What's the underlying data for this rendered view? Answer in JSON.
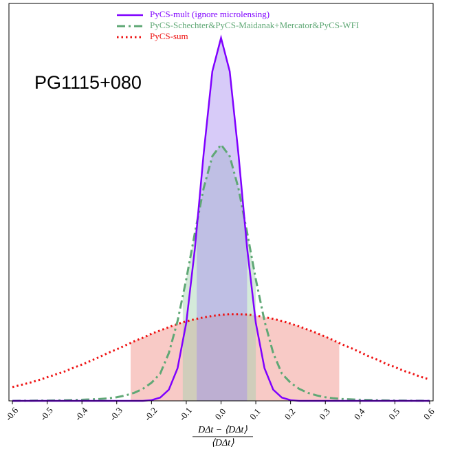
{
  "chart_data": {
    "type": "line",
    "annotation": "PG1115+080",
    "xlabel": {
      "numerator": "DΔt − ⟨DΔt⟩",
      "denominator": "⟨DΔt⟩"
    },
    "xlim": [
      -0.61,
      0.61
    ],
    "ylim": [
      0,
      1.095
    ],
    "xticks": [
      -0.6,
      -0.5,
      -0.4,
      -0.3,
      -0.2,
      -0.1,
      {
        "value": 0,
        "label": "0.0"
      },
      0.1,
      0.2,
      0.3,
      0.4,
      0.5,
      0.6
    ],
    "x": [
      -0.6,
      -0.575,
      -0.55,
      -0.525,
      -0.5,
      -0.475,
      -0.45,
      -0.425,
      -0.4,
      -0.375,
      -0.35,
      -0.325,
      -0.3,
      -0.275,
      -0.25,
      -0.225,
      -0.2,
      -0.175,
      -0.15,
      -0.125,
      -0.1,
      -0.075,
      -0.05,
      -0.025,
      0,
      0.025,
      0.05,
      0.075,
      0.1,
      0.125,
      0.15,
      0.175,
      0.2,
      0.225,
      0.25,
      0.275,
      0.3,
      0.325,
      0.35,
      0.375,
      0.4,
      0.425,
      0.45,
      0.475,
      0.5,
      0.525,
      0.55,
      0.575,
      0.6
    ],
    "series": [
      {
        "name": "PyCS-sum",
        "color": "#ee1111",
        "fill": "#f08a80",
        "style": "dotted",
        "band": [
          -0.26,
          0.34
        ],
        "values": [
          0.038,
          0.044,
          0.05,
          0.057,
          0.065,
          0.073,
          0.081,
          0.091,
          0.1,
          0.11,
          0.121,
          0.132,
          0.142,
          0.153,
          0.164,
          0.174,
          0.185,
          0.194,
          0.203,
          0.212,
          0.219,
          0.225,
          0.23,
          0.234,
          0.237,
          0.239,
          0.239,
          0.238,
          0.235,
          0.231,
          0.226,
          0.22,
          0.213,
          0.205,
          0.196,
          0.187,
          0.177,
          0.166,
          0.155,
          0.145,
          0.134,
          0.123,
          0.113,
          0.102,
          0.093,
          0.083,
          0.075,
          0.066,
          0.059
        ]
      },
      {
        "name": "PyCS-Schechter&PyCS-Maidanak+Mercator&PyCS-WFI",
        "color": "#5fa875",
        "fill": "#9fd0ac",
        "style": "dashdot",
        "band": [
          -0.11,
          0.1
        ],
        "values": [
          0,
          0.0005,
          0.0005,
          0.001,
          0.001,
          0.0015,
          0.002,
          0.0025,
          0.003,
          0.004,
          0.005,
          0.007,
          0.01,
          0.015,
          0.022,
          0.033,
          0.05,
          0.075,
          0.132,
          0.22,
          0.335,
          0.464,
          0.586,
          0.674,
          0.706,
          0.674,
          0.586,
          0.464,
          0.335,
          0.22,
          0.132,
          0.075,
          0.05,
          0.033,
          0.022,
          0.015,
          0.01,
          0.007,
          0.005,
          0.004,
          0.003,
          0.0025,
          0.002,
          0.0015,
          0.001,
          0.001,
          0.0005,
          0.0005,
          0
        ]
      },
      {
        "name": "PyCS-mult (ignore microlensing)",
        "color": "#7f00ff",
        "fill": "#a78bf0",
        "style": "solid",
        "band": [
          -0.07,
          0.075
        ],
        "values": [
          0,
          0,
          0,
          0,
          0,
          0,
          0,
          0,
          0,
          0,
          0,
          0,
          0,
          0,
          0,
          0,
          0.002,
          0.009,
          0.031,
          0.09,
          0.215,
          0.421,
          0.681,
          0.908,
          1,
          0.908,
          0.681,
          0.421,
          0.215,
          0.09,
          0.031,
          0.009,
          0.002,
          0,
          0,
          0,
          0,
          0,
          0,
          0,
          0,
          0,
          0,
          0,
          0,
          0,
          0,
          0,
          0
        ]
      }
    ]
  }
}
